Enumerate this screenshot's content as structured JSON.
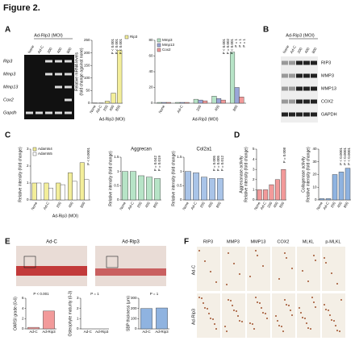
{
  "figure_title": "Figure 2.",
  "panel_labels": [
    "A",
    "B",
    "C",
    "D",
    "E",
    "F"
  ],
  "gel": {
    "header": "Ad-Rip3 (MOI)",
    "lanes": [
      "None",
      "Ad-C",
      "200",
      "400",
      "800"
    ],
    "rows": [
      "Rip3",
      "Mmp3",
      "Mmp13",
      "Cox2",
      "Gapdh"
    ]
  },
  "blot": {
    "header": "Ad-Rip3 (MOI)",
    "lanes": [
      "None",
      "Ad-C",
      "200",
      "400",
      "800"
    ],
    "rows": [
      "RIP3",
      "MMP3",
      "MMP13",
      "COX2",
      "GAPDH"
    ]
  },
  "histology_e": {
    "labels": [
      "Ad-C",
      "Ad-Rip3"
    ]
  },
  "histology_f": {
    "columns": [
      "RIP3",
      "MMP3",
      "MMP13",
      "COX2",
      "MLKL",
      "p-MLKL"
    ],
    "rows": [
      "Ad-C",
      "Ad-Rip3"
    ]
  },
  "chart_data": [
    {
      "type": "bar",
      "ylabel": [
        "Relative mRNA levels",
        "(fold change against none)"
      ],
      "xlabel": "Ad-Rip3 (MOI)",
      "categories": [
        "None",
        "Ad-C",
        "200",
        "400",
        "800"
      ],
      "series": [
        {
          "name": "Rip3",
          "color": "#f3ee9a",
          "values": [
            1,
            1,
            8,
            40,
            210
          ]
        }
      ],
      "ylim": [
        0,
        250
      ],
      "yticks": [
        0,
        50,
        100,
        150,
        200,
        250
      ],
      "annotations": [
        "P < 0.001",
        "P < 0.001",
        "P < 0.001"
      ]
    },
    {
      "type": "bar",
      "xlabel": "Ad-Rip3 (MOI)",
      "categories": [
        "None",
        "Ad-C",
        "200",
        "400",
        "800"
      ],
      "series": [
        {
          "name": "Mmp3",
          "color": "#b7e4c7",
          "values": [
            1,
            1,
            5,
            9,
            65
          ]
        },
        {
          "name": "Mmp13",
          "color": "#9aa6d8",
          "values": [
            1,
            1,
            4,
            6,
            20
          ]
        },
        {
          "name": "Cox2",
          "color": "#f29a9a",
          "values": [
            1,
            1,
            3,
            4,
            8
          ]
        }
      ],
      "ylim": [
        0,
        80
      ],
      "yticks": [
        0,
        20,
        40,
        60,
        80
      ],
      "annotations": [
        "P = 1",
        "P = 1",
        "P = 1",
        "P < 0.001",
        "P = 0.002",
        "P < 0.001"
      ]
    },
    {
      "type": "bar",
      "ylabel": [
        "Relative intensity (fold change)"
      ],
      "xlabel": "Ad-Rip3 (MOI)",
      "categories": [
        "None",
        "Ad-C",
        "200",
        "400",
        "800"
      ],
      "series": [
        {
          "name": "Adamts4",
          "color": "#f3ee9a",
          "values": [
            1,
            1,
            1,
            1.6,
            2.2
          ]
        },
        {
          "name": "Adamts5",
          "color": "#ffffff",
          "values": [
            1,
            0.7,
            0.9,
            1.1,
            1.2
          ]
        }
      ],
      "ylim": [
        0,
        3
      ],
      "yticks": [
        0,
        1,
        2,
        3
      ],
      "annotations": [
        "P < 0.0001"
      ]
    },
    {
      "type": "bar",
      "title": "Aggrecan",
      "ylabel": [
        "Relative intensity (fold change)"
      ],
      "categories": [
        "None",
        "Ad-C",
        "200",
        "400",
        "800"
      ],
      "color": "#b7e4c7",
      "values": [
        1,
        1,
        0.85,
        0.8,
        0.75
      ],
      "ylim": [
        0,
        1.5
      ],
      "yticks": [
        0,
        0.5,
        1,
        1.5
      ],
      "annotations": [
        "P = 0.019",
        "P = 0.042"
      ]
    },
    {
      "type": "bar",
      "title": "Col2a1",
      "ylabel": [
        "Relative intensity (fold change)"
      ],
      "categories": [
        "None",
        "Ad-C",
        "200",
        "400",
        "800"
      ],
      "color": "#a9c4e8",
      "values": [
        1,
        0.95,
        0.8,
        0.75,
        0.75
      ],
      "ylim": [
        0,
        1.5
      ],
      "yticks": [
        0,
        0.5,
        1,
        1.5
      ],
      "annotations": [
        "P = 0.012",
        "P = 0.005",
        "P = 0.005"
      ]
    },
    {
      "type": "bar",
      "ylabel": [
        "Aggrecanase activity",
        "Relative intensity (fold change)"
      ],
      "categories": [
        "None",
        "Ad-C",
        "200",
        "400",
        "800"
      ],
      "color": "#f29a9a",
      "values": [
        1,
        1,
        1.5,
        2,
        3
      ],
      "ylim": [
        0,
        5
      ],
      "yticks": [
        0,
        1,
        2,
        3,
        4,
        5
      ],
      "annotations": [
        "P = 0.008"
      ]
    },
    {
      "type": "bar",
      "ylabel": [
        "Collagenase activity",
        "Relative intensity (fold change)"
      ],
      "categories": [
        "None",
        "Ad-C",
        "200",
        "400",
        "800"
      ],
      "color": "#8fb3e0",
      "values": [
        1,
        1,
        20,
        22,
        25
      ],
      "ylim": [
        0,
        40
      ],
      "yticks": [
        0,
        10,
        20,
        30,
        40
      ],
      "annotations": [
        "P < 0.0001",
        "P < 0.0001",
        "P < 0.0001"
      ]
    },
    {
      "type": "bar",
      "ylabel": [
        "OARSI grade (0-6)"
      ],
      "categories": [
        "Ad-C",
        "Ad-Rip3"
      ],
      "color": "#f29a9a",
      "values": [
        0.3,
        3.5
      ],
      "ylim": [
        0,
        6
      ],
      "yticks": [
        0,
        2,
        4,
        6
      ],
      "annotations": [
        "P < 0.001"
      ]
    },
    {
      "type": "bar",
      "ylabel": [
        "Osteophyte maturity (0-3)"
      ],
      "categories": [
        "Ad-C",
        "Ad-Rip3"
      ],
      "color": "#cccccc",
      "values": [
        0,
        0
      ],
      "ylim": [
        0,
        3
      ],
      "yticks": [
        0,
        1,
        2,
        3
      ],
      "annotations": [
        "P = 1"
      ]
    },
    {
      "type": "bar",
      "ylabel": [
        "SBP thickness (μm)"
      ],
      "categories": [
        "Ad-C",
        "Ad-Rip3"
      ],
      "color": "#8fb3e0",
      "values": [
        200,
        205
      ],
      "ylim": [
        0,
        300
      ],
      "yticks": [
        0,
        100,
        200,
        300
      ],
      "annotations": [
        "P = 1"
      ]
    }
  ]
}
